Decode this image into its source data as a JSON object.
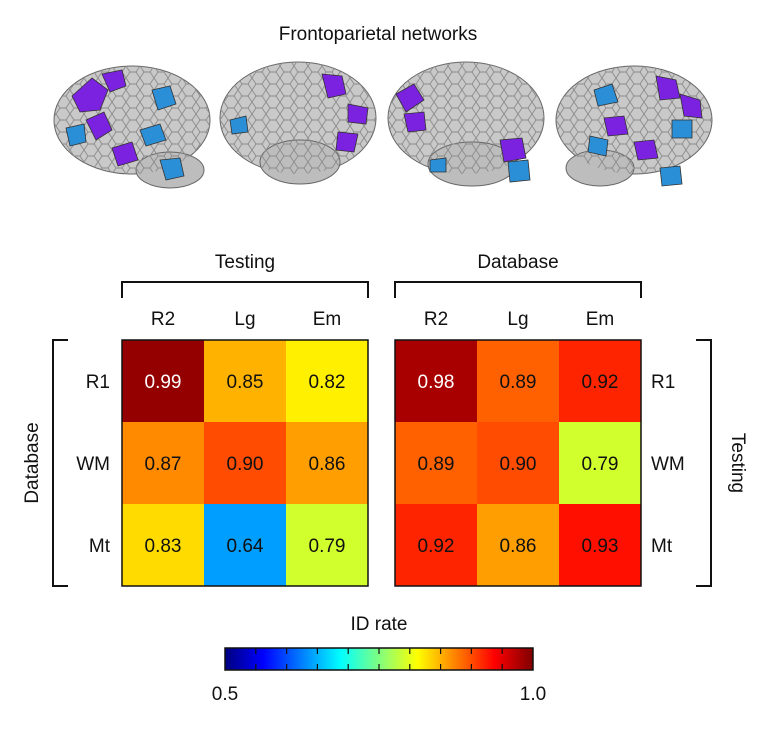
{
  "figure": {
    "title": "Frontoparietal networks",
    "colors": {
      "brain_base": "#c9c9c9",
      "network_purple": "#7b22e0",
      "network_blue": "#2a8fd6"
    }
  },
  "chart_data": [
    {
      "type": "heatmap",
      "panel": "left",
      "column_group_label": "Testing",
      "row_group_label": "Database",
      "columns": [
        "R2",
        "Lg",
        "Em"
      ],
      "rows": [
        "R1",
        "WM",
        "Mt"
      ],
      "values": [
        [
          0.99,
          0.85,
          0.82
        ],
        [
          0.87,
          0.9,
          0.86
        ],
        [
          0.83,
          0.64,
          0.79
        ]
      ],
      "value_labels": [
        [
          "0.99",
          "0.85",
          "0.82"
        ],
        [
          "0.87",
          "0.90",
          "0.86"
        ],
        [
          "0.83",
          "0.64",
          "0.79"
        ]
      ],
      "colormap": "jet",
      "vlim": [
        0.5,
        1.0
      ]
    },
    {
      "type": "heatmap",
      "panel": "right",
      "column_group_label": "Database",
      "row_group_label": "Testing",
      "columns": [
        "R2",
        "Lg",
        "Em"
      ],
      "rows": [
        "R1",
        "WM",
        "Mt"
      ],
      "values": [
        [
          0.98,
          0.89,
          0.92
        ],
        [
          0.89,
          0.9,
          0.79
        ],
        [
          0.92,
          0.86,
          0.93
        ]
      ],
      "value_labels": [
        [
          "0.98",
          "0.89",
          "0.92"
        ],
        [
          "0.89",
          "0.90",
          "0.79"
        ],
        [
          "0.92",
          "0.86",
          "0.93"
        ]
      ],
      "colormap": "jet",
      "vlim": [
        0.5,
        1.0
      ]
    }
  ],
  "colorbar": {
    "label": "ID rate",
    "min_label": "0.5",
    "max_label": "1.0",
    "vlim": [
      0.5,
      1.0
    ],
    "colormap": "jet"
  }
}
